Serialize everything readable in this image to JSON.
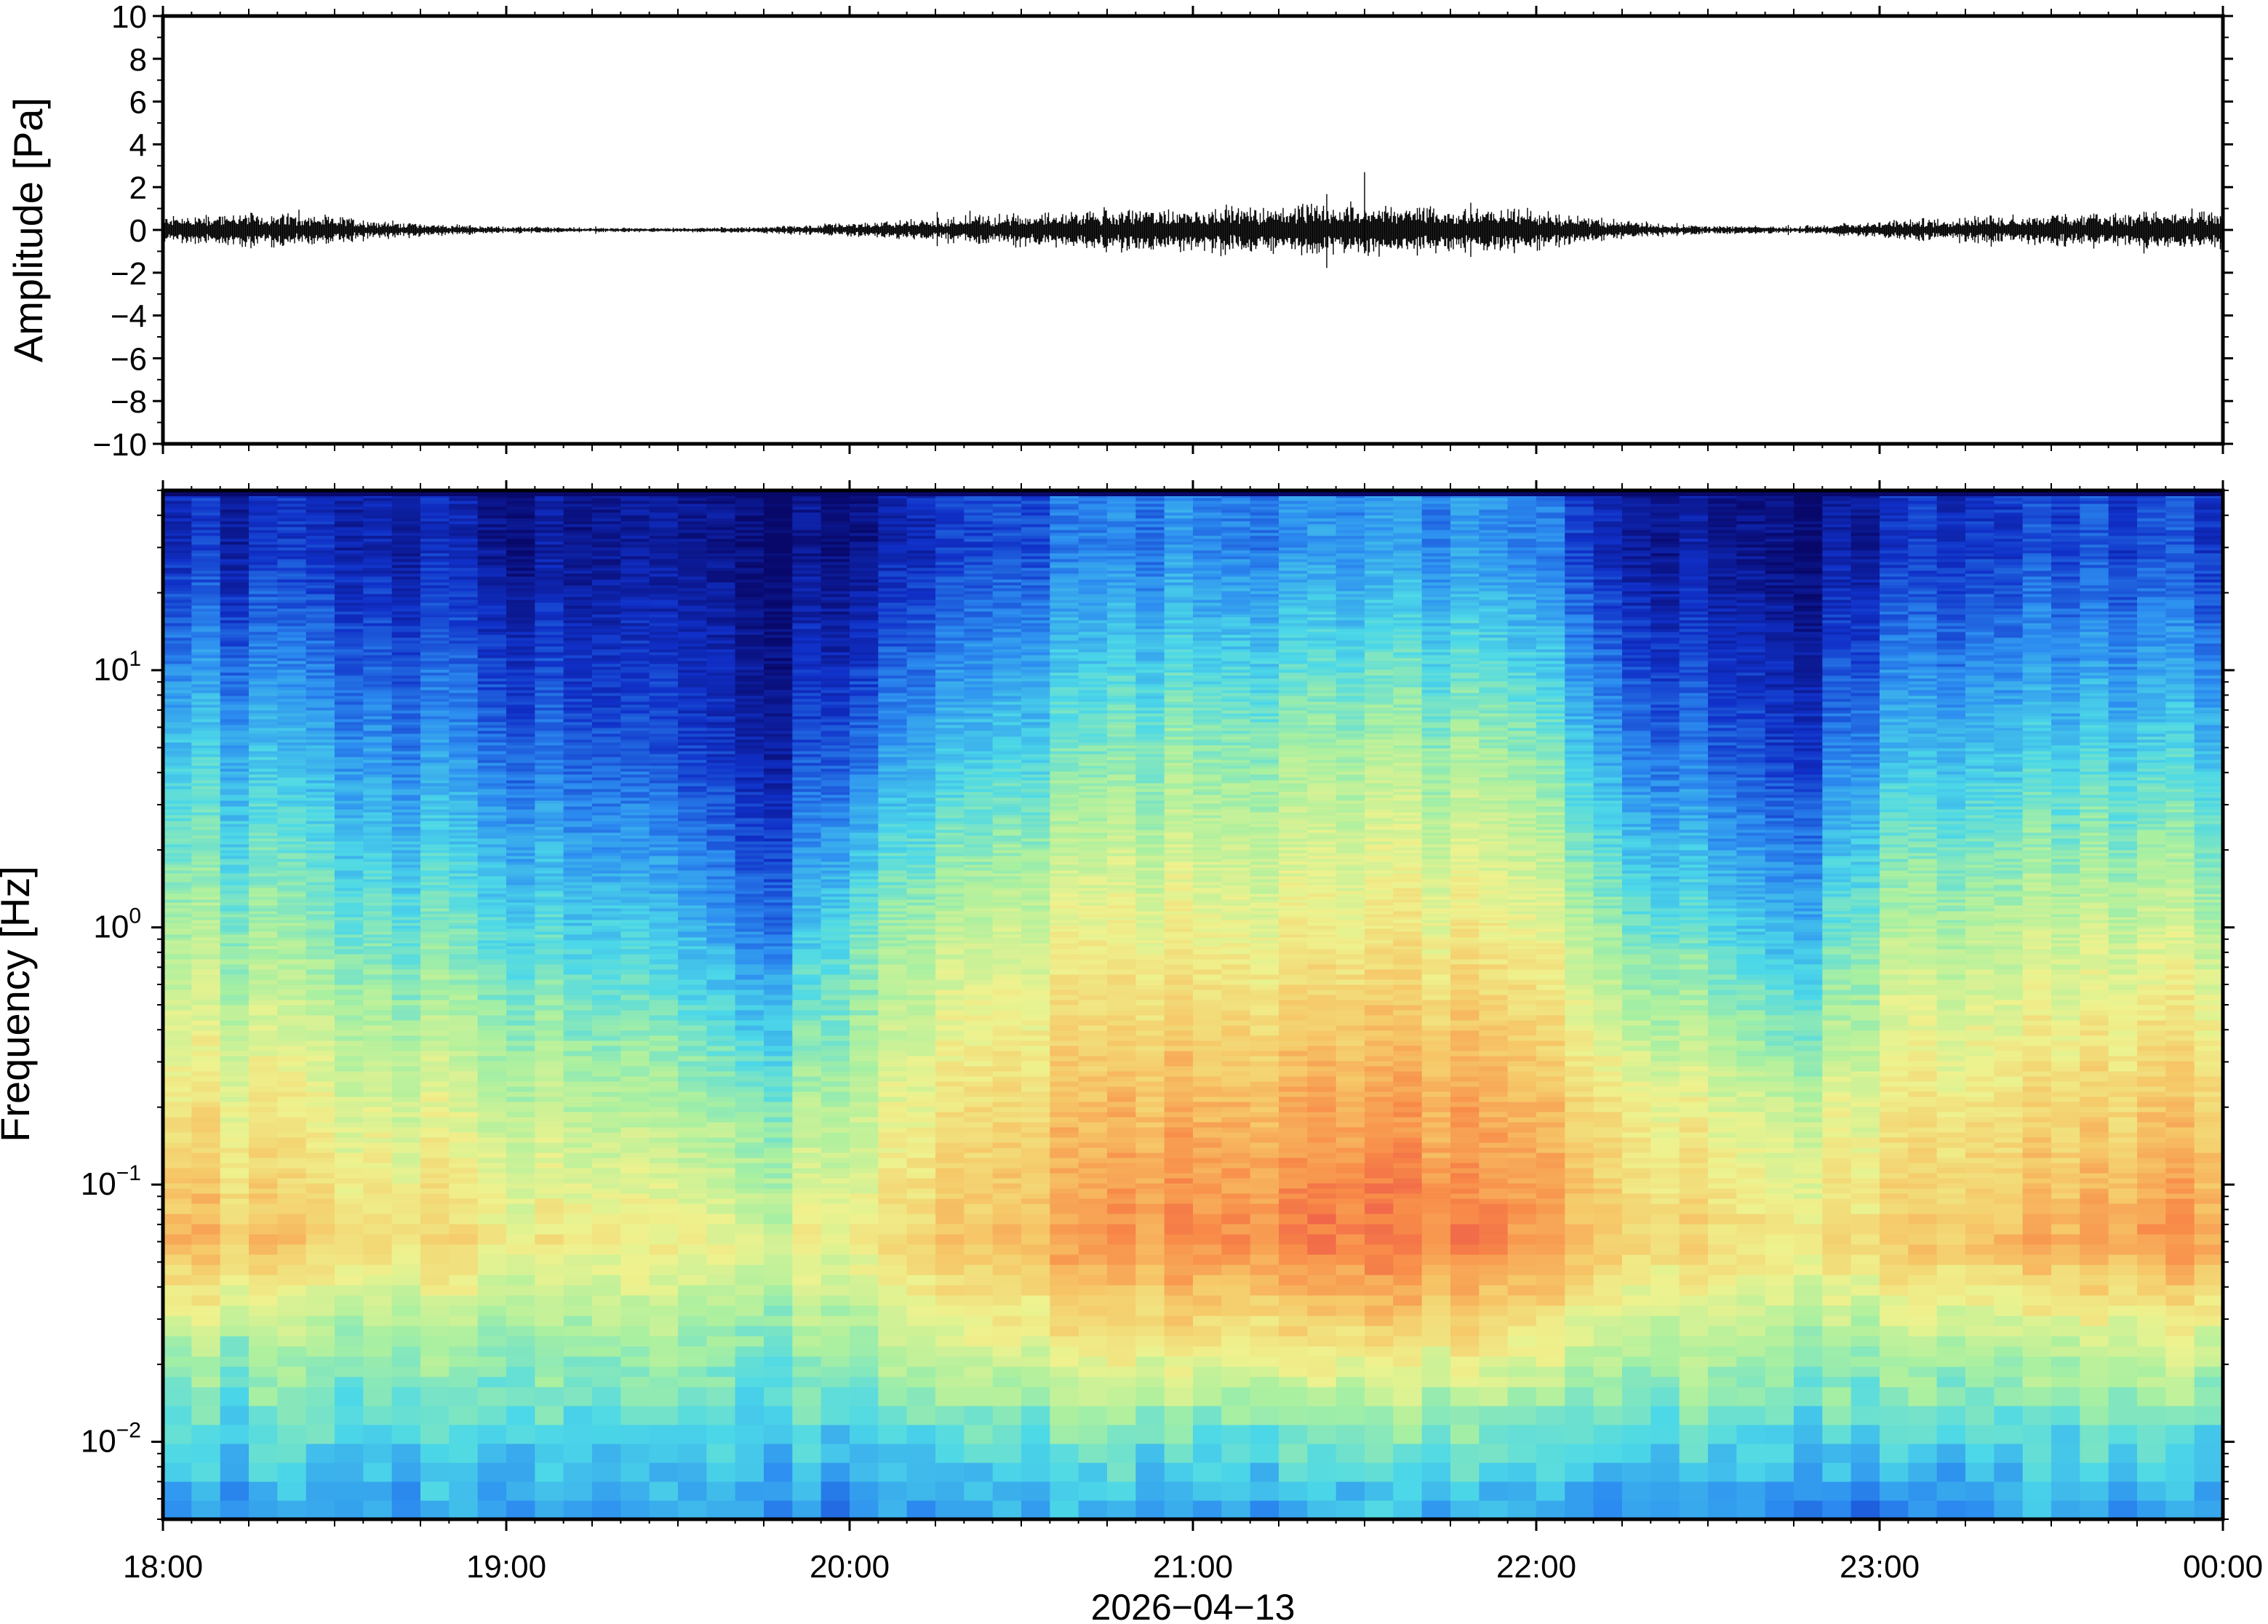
{
  "chart_data": [
    {
      "type": "line",
      "panel": "waveform",
      "ylabel": "Amplitude [Pa]",
      "ylim": [
        -10,
        10
      ],
      "yticks": [
        "10",
        "8",
        "6",
        "4",
        "2",
        "0",
        "−2",
        "−4",
        "−6",
        "−8",
        "−10"
      ],
      "xlim": [
        "18:00",
        "00:00"
      ],
      "series": [
        {
          "x": [
            "18:00",
            "18:15",
            "18:30",
            "18:45",
            "19:00",
            "19:15",
            "19:30",
            "19:45",
            "20:00",
            "20:15",
            "20:30",
            "20:45",
            "21:00",
            "21:15",
            "21:30",
            "21:45",
            "22:00",
            "22:15",
            "22:30",
            "22:45",
            "23:00",
            "23:15",
            "23:30",
            "23:45",
            "00:00"
          ],
          "envelope": [
            0.6,
            0.8,
            0.6,
            0.3,
            0.15,
            0.1,
            0.1,
            0.15,
            0.3,
            0.5,
            0.8,
            0.9,
            1.0,
            1.1,
            1.2,
            1.0,
            0.9,
            0.4,
            0.2,
            0.15,
            0.4,
            0.6,
            0.7,
            0.8,
            0.9
          ],
          "peak_max": 2.7,
          "peak_time": "21:30",
          "color": "#000000"
        }
      ]
    },
    {
      "type": "heatmap",
      "panel": "spectrogram",
      "ylabel": "Frequency [Hz]",
      "yscale": "log",
      "ylim": [
        0.005,
        50
      ],
      "ytick_labels": [
        {
          "base": "10",
          "exp": "1",
          "value": 10
        },
        {
          "base": "10",
          "exp": "0",
          "value": 1
        },
        {
          "base": "10",
          "exp": "−1",
          "value": 0.1
        },
        {
          "base": "10",
          "exp": "−2",
          "value": 0.01
        }
      ],
      "xlabel": "2026−04−13",
      "xtick_labels": [
        "18:00",
        "19:00",
        "20:00",
        "21:00",
        "22:00",
        "23:00",
        "00:00"
      ],
      "colormap": [
        "#08086b",
        "#1030c8",
        "#2c8cf0",
        "#4cd8e8",
        "#aaf0a0",
        "#eef28e",
        "#f6c868",
        "#f88a48",
        "#e8424a"
      ],
      "relative_power": {
        "times": [
          "18:00",
          "18:30",
          "19:00",
          "19:30",
          "19:45",
          "20:00",
          "20:30",
          "21:00",
          "21:30",
          "22:00",
          "22:15",
          "22:45",
          "23:00",
          "23:30",
          "00:00"
        ],
        "rows": [
          {
            "frequency_hz": 30,
            "levels": [
              0.1,
              0.12,
              0.06,
              0.04,
              0.02,
              0.05,
              0.18,
              0.24,
              0.26,
              0.24,
              0.08,
              0.02,
              0.1,
              0.16,
              0.14
            ]
          },
          {
            "frequency_hz": 5,
            "levels": [
              0.34,
              0.3,
              0.22,
              0.14,
              0.08,
              0.22,
              0.38,
              0.46,
              0.5,
              0.46,
              0.26,
              0.12,
              0.3,
              0.36,
              0.34
            ]
          },
          {
            "frequency_hz": 1,
            "levels": [
              0.5,
              0.46,
              0.4,
              0.32,
              0.22,
              0.44,
              0.58,
              0.62,
              0.64,
              0.62,
              0.46,
              0.3,
              0.5,
              0.56,
              0.54
            ]
          },
          {
            "frequency_hz": 0.2,
            "levels": [
              0.66,
              0.62,
              0.56,
              0.5,
              0.46,
              0.56,
              0.72,
              0.78,
              0.82,
              0.78,
              0.66,
              0.54,
              0.64,
              0.7,
              0.74
            ]
          },
          {
            "frequency_hz": 0.06,
            "levels": [
              0.78,
              0.72,
              0.66,
              0.62,
              0.58,
              0.66,
              0.78,
              0.86,
              0.9,
              0.84,
              0.74,
              0.66,
              0.72,
              0.8,
              0.84
            ]
          },
          {
            "frequency_hz": 0.025,
            "levels": [
              0.52,
              0.5,
              0.5,
              0.48,
              0.46,
              0.52,
              0.62,
              0.66,
              0.68,
              0.64,
              0.54,
              0.5,
              0.52,
              0.56,
              0.58
            ]
          },
          {
            "frequency_hz": 0.012,
            "levels": [
              0.4,
              0.42,
              0.4,
              0.38,
              0.38,
              0.4,
              0.44,
              0.44,
              0.46,
              0.44,
              0.42,
              0.4,
              0.4,
              0.42,
              0.42
            ]
          },
          {
            "frequency_hz": 0.006,
            "levels": [
              0.28,
              0.3,
              0.3,
              0.28,
              0.3,
              0.26,
              0.32,
              0.3,
              0.32,
              0.3,
              0.28,
              0.26,
              0.24,
              0.3,
              0.28
            ]
          }
        ]
      }
    }
  ]
}
